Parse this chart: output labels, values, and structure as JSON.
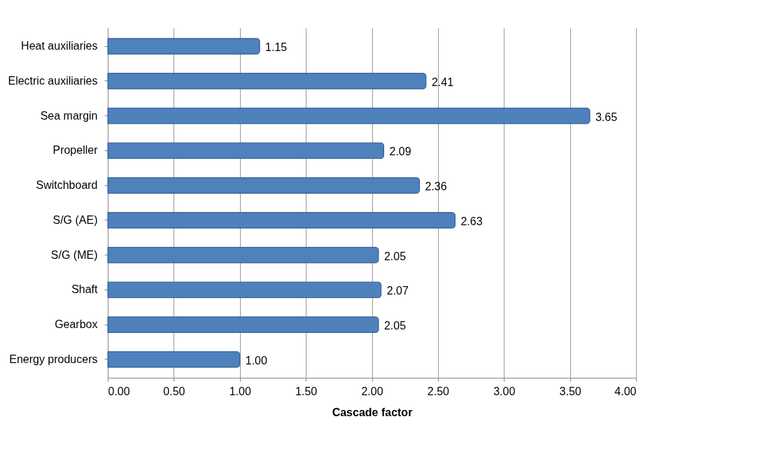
{
  "chart_data": {
    "type": "bar",
    "orientation": "horizontal",
    "xlabel": "Cascade factor",
    "categories": [
      "Heat auxiliaries",
      "Electric auxiliaries",
      "Sea margin",
      "Propeller",
      "Switchboard",
      "S/G (AE)",
      "S/G (ME)",
      "Shaft",
      "Gearbox",
      "Energy producers"
    ],
    "values": [
      1.15,
      2.41,
      3.65,
      2.09,
      2.36,
      2.63,
      2.05,
      2.07,
      2.05,
      1.0
    ],
    "value_labels": [
      "1.15",
      "2.41",
      "3.65",
      "2.09",
      "2.36",
      "2.63",
      "2.05",
      "2.07",
      "2.05",
      "1.00"
    ],
    "color": "#4f81bd",
    "xlim": [
      0,
      4
    ],
    "xticks": [
      {
        "value": 0,
        "label": "0.00"
      },
      {
        "value": 0.5,
        "label": "0.50"
      },
      {
        "value": 1,
        "label": "1.00"
      },
      {
        "value": 1.5,
        "label": "1.50"
      },
      {
        "value": 2,
        "label": "2.00"
      },
      {
        "value": 2.5,
        "label": "2.50"
      },
      {
        "value": 3,
        "label": "3.00"
      },
      {
        "value": 3.5,
        "label": "3.50"
      },
      {
        "value": 4,
        "label": "4.00"
      }
    ],
    "grid": "x"
  }
}
